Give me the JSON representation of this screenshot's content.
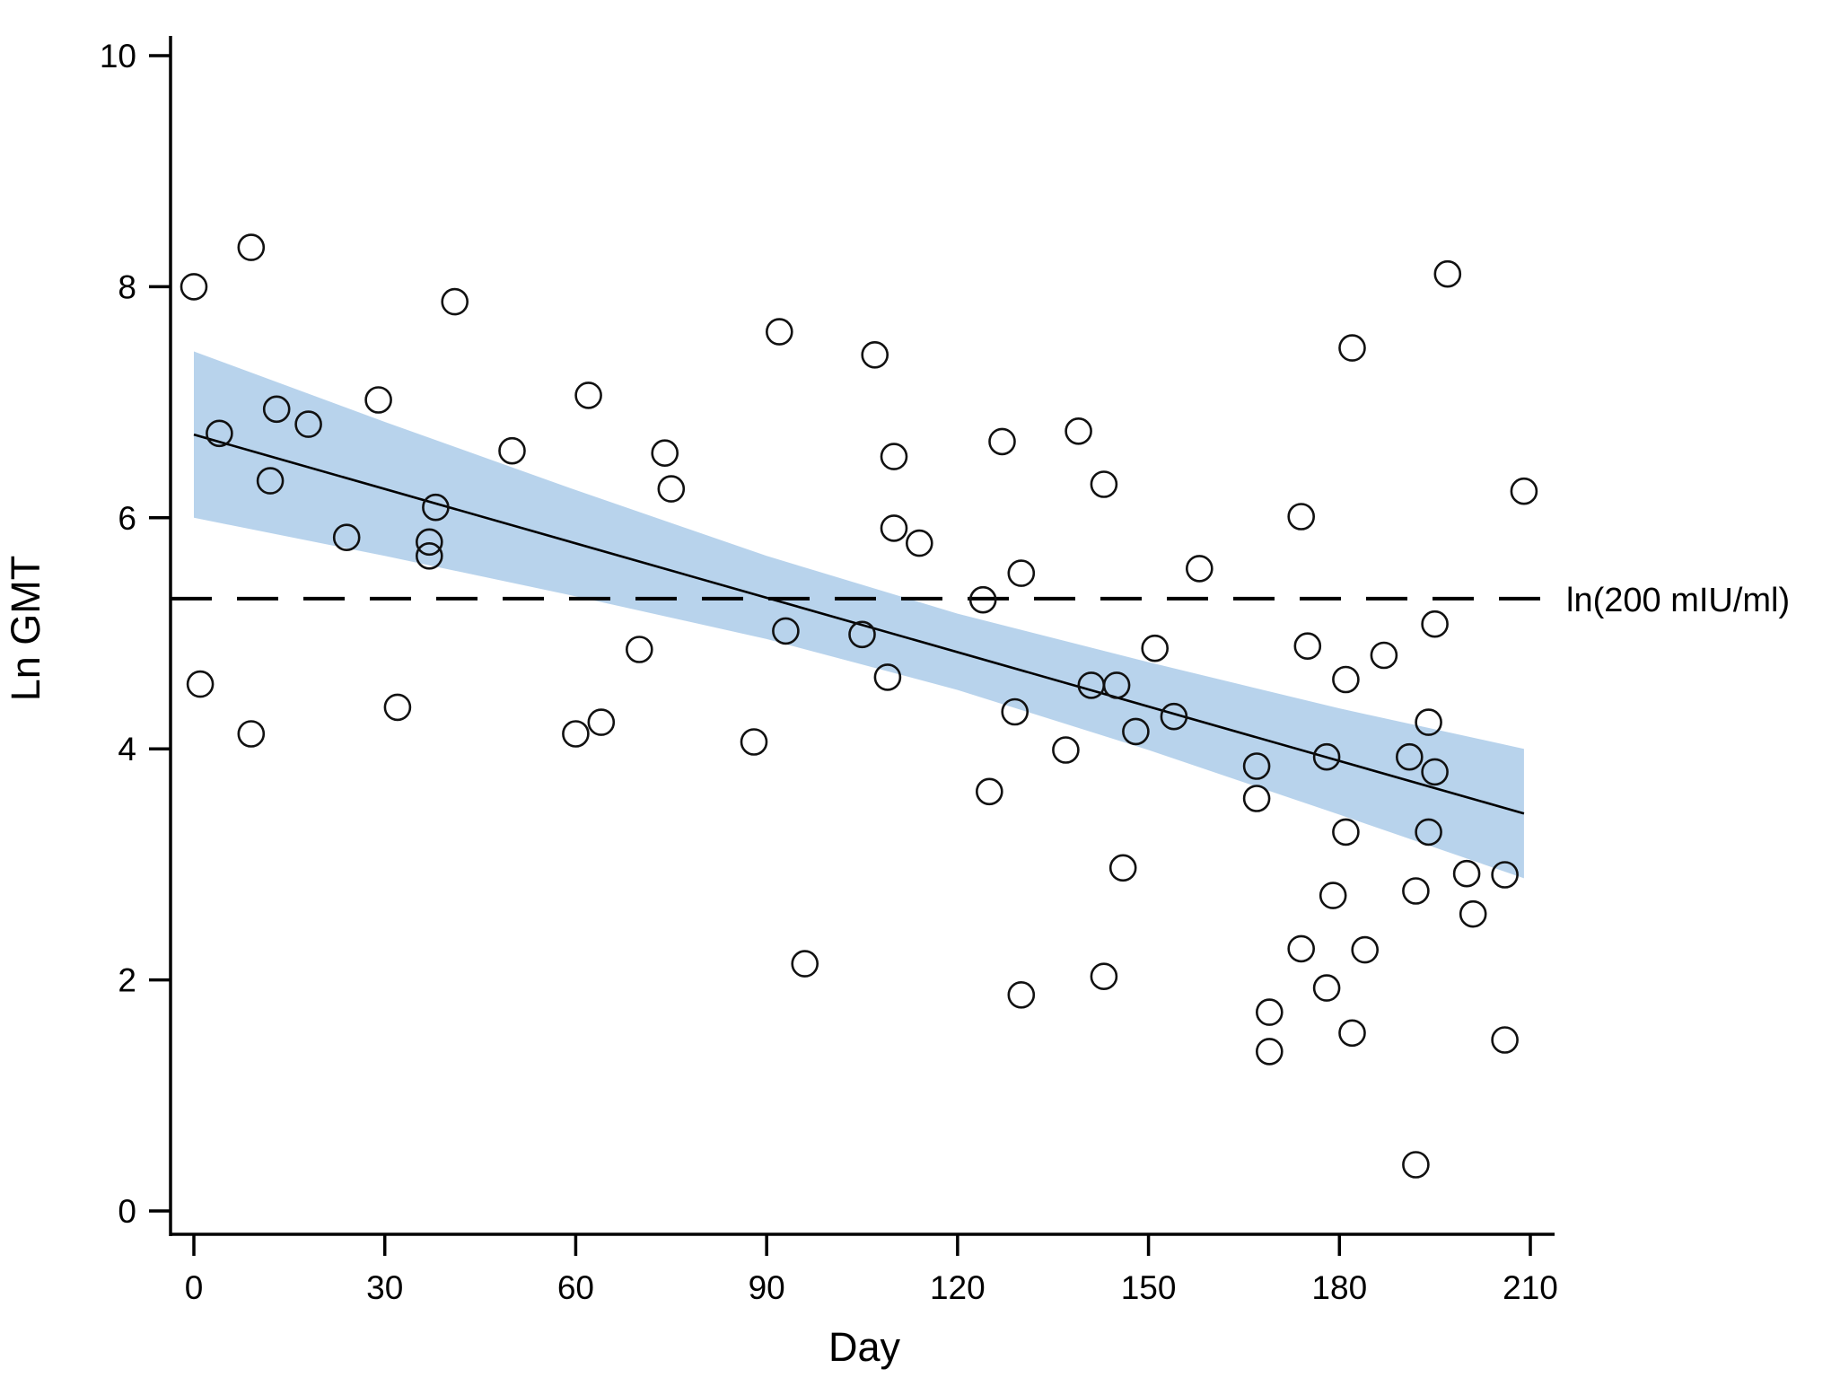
{
  "chart_data": {
    "type": "scatter",
    "title": "",
    "xlabel": "Day",
    "ylabel": "Ln GMT",
    "xlim": [
      0,
      210
    ],
    "ylim": [
      0,
      10
    ],
    "x_ticks": [
      0,
      30,
      60,
      90,
      120,
      150,
      180,
      210
    ],
    "y_ticks": [
      0,
      2,
      4,
      6,
      8,
      10
    ],
    "grid": false,
    "legend": "none",
    "marker": {
      "shape": "open-circle",
      "radius_px": 14,
      "stroke": "#111111",
      "stroke_width": 2.6,
      "fill": "none"
    },
    "colors": {
      "band_fill": "#b8d3ec",
      "line": "#000000",
      "reference_line": "#000000",
      "axis": "#000000"
    },
    "points": [
      [
        0,
        8.0
      ],
      [
        9,
        8.34
      ],
      [
        4,
        6.73
      ],
      [
        13,
        6.94
      ],
      [
        18,
        6.81
      ],
      [
        29,
        7.02
      ],
      [
        41,
        7.87
      ],
      [
        62,
        7.06
      ],
      [
        50,
        6.58
      ],
      [
        12,
        6.32
      ],
      [
        38,
        6.09
      ],
      [
        24,
        5.83
      ],
      [
        37,
        5.79
      ],
      [
        37,
        5.67
      ],
      [
        1,
        4.56
      ],
      [
        32,
        4.36
      ],
      [
        9,
        4.13
      ],
      [
        60,
        4.13
      ],
      [
        64,
        4.23
      ],
      [
        70,
        4.86
      ],
      [
        74,
        6.56
      ],
      [
        75,
        6.25
      ],
      [
        92,
        7.61
      ],
      [
        107,
        7.41
      ],
      [
        110,
        6.53
      ],
      [
        127,
        6.66
      ],
      [
        139,
        6.75
      ],
      [
        143,
        6.29
      ],
      [
        110,
        5.91
      ],
      [
        114,
        5.78
      ],
      [
        130,
        5.52
      ],
      [
        124,
        5.29
      ],
      [
        93,
        5.02
      ],
      [
        105,
        4.99
      ],
      [
        109,
        4.62
      ],
      [
        129,
        4.32
      ],
      [
        88,
        4.06
      ],
      [
        137,
        3.99
      ],
      [
        125,
        3.63
      ],
      [
        96,
        2.14
      ],
      [
        130,
        1.87
      ],
      [
        197,
        8.11
      ],
      [
        182,
        7.47
      ],
      [
        209,
        6.23
      ],
      [
        174,
        6.01
      ],
      [
        158,
        5.56
      ],
      [
        195,
        5.08
      ],
      [
        151,
        4.87
      ],
      [
        175,
        4.89
      ],
      [
        187,
        4.81
      ],
      [
        181,
        4.6
      ],
      [
        141,
        4.55
      ],
      [
        145,
        4.55
      ],
      [
        148,
        4.15
      ],
      [
        154,
        4.28
      ],
      [
        194,
        4.23
      ],
      [
        167,
        3.85
      ],
      [
        178,
        3.93
      ],
      [
        191,
        3.93
      ],
      [
        195,
        3.8
      ],
      [
        167,
        3.57
      ],
      [
        181,
        3.28
      ],
      [
        194,
        3.28
      ],
      [
        146,
        2.97
      ],
      [
        200,
        2.92
      ],
      [
        206,
        2.91
      ],
      [
        179,
        2.73
      ],
      [
        192,
        2.77
      ],
      [
        201,
        2.57
      ],
      [
        174,
        2.27
      ],
      [
        184,
        2.26
      ],
      [
        178,
        1.93
      ],
      [
        169,
        1.72
      ],
      [
        182,
        1.54
      ],
      [
        169,
        1.38
      ],
      [
        143,
        2.03
      ],
      [
        206,
        1.48
      ],
      [
        192,
        0.4
      ]
    ],
    "regression_line": {
      "x": [
        0,
        209
      ],
      "y": [
        6.72,
        3.44
      ]
    },
    "confidence_band": {
      "x": [
        0,
        30,
        60,
        90,
        120,
        150,
        180,
        209
      ],
      "upper": [
        7.44,
        6.83,
        6.24,
        5.67,
        5.17,
        4.75,
        4.35,
        4.0
      ],
      "lower": [
        6.0,
        5.67,
        5.32,
        4.95,
        4.51,
        3.99,
        3.43,
        2.88
      ]
    },
    "reference_line": {
      "value": 5.3,
      "label": "ln(200 mIU/ml)",
      "style": "dashed"
    }
  }
}
